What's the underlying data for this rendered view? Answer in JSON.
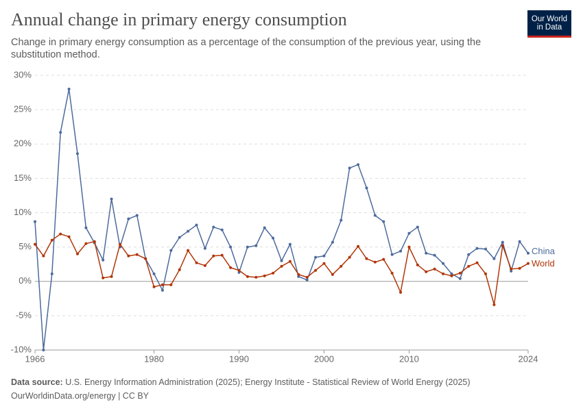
{
  "header": {
    "logo": "Our World in Data"
  },
  "chart_data": {
    "type": "line",
    "title": "Annual change in primary energy consumption",
    "subtitle": "Change in primary energy consumption as a percentage of the consumption of the previous year, using the substitution method.",
    "x": [
      1966,
      1967,
      1968,
      1969,
      1970,
      1971,
      1972,
      1973,
      1974,
      1975,
      1976,
      1977,
      1978,
      1979,
      1980,
      1981,
      1982,
      1983,
      1984,
      1985,
      1986,
      1987,
      1988,
      1989,
      1990,
      1991,
      1992,
      1993,
      1994,
      1995,
      1996,
      1997,
      1998,
      1999,
      2000,
      2001,
      2002,
      2003,
      2004,
      2005,
      2006,
      2007,
      2008,
      2009,
      2010,
      2011,
      2012,
      2013,
      2014,
      2015,
      2016,
      2017,
      2018,
      2019,
      2020,
      2021,
      2022,
      2023,
      2024
    ],
    "series": [
      {
        "name": "China",
        "color": "#4c6a9c",
        "values": [
          8.7,
          -10,
          1.1,
          21.7,
          28.0,
          18.6,
          7.8,
          5.6,
          3.1,
          12.0,
          5.0,
          9.1,
          9.6,
          3.3,
          1.1,
          -1.3,
          4.5,
          6.4,
          7.3,
          8.2,
          4.8,
          7.9,
          7.5,
          5.0,
          1.3,
          5.0,
          5.2,
          7.8,
          6.3,
          3.0,
          5.4,
          0.7,
          0.2,
          3.5,
          3.7,
          5.7,
          8.9,
          16.5,
          17.0,
          13.6,
          9.6,
          8.7,
          3.9,
          4.4,
          7.0,
          7.9,
          4.1,
          3.8,
          2.6,
          1.1,
          0.4,
          3.9,
          4.8,
          4.7,
          3.3,
          5.7,
          1.5,
          5.8,
          4.1
        ]
      },
      {
        "name": "World",
        "color": "#b13507",
        "values": [
          5.4,
          3.7,
          6.0,
          6.9,
          6.5,
          4.0,
          5.5,
          5.8,
          0.5,
          0.7,
          5.4,
          3.7,
          3.9,
          3.3,
          -0.8,
          -0.5,
          -0.5,
          1.7,
          4.5,
          2.7,
          2.3,
          3.7,
          3.8,
          2.0,
          1.6,
          0.7,
          0.6,
          0.8,
          1.2,
          2.2,
          2.9,
          1.0,
          0.6,
          1.6,
          2.6,
          1.0,
          2.2,
          3.5,
          5.1,
          3.3,
          2.8,
          3.2,
          1.2,
          -1.6,
          5.0,
          2.4,
          1.4,
          1.8,
          1.1,
          0.8,
          1.2,
          2.2,
          2.7,
          1.1,
          -3.4,
          5.2,
          1.8,
          1.9,
          2.6
        ]
      }
    ],
    "xlim": [
      1966,
      2024
    ],
    "xticks": [
      1966,
      1980,
      1990,
      2000,
      2010,
      2024
    ],
    "ylim": [
      -10,
      30
    ],
    "yticks": [
      {
        "value": -10,
        "label": "-10%"
      },
      {
        "value": -5,
        "label": "-5%"
      },
      {
        "value": 0,
        "label": "0%"
      },
      {
        "value": 5,
        "label": "5%"
      },
      {
        "value": 10,
        "label": "10%"
      },
      {
        "value": 15,
        "label": "15%"
      },
      {
        "value": 20,
        "label": "20%"
      },
      {
        "value": 25,
        "label": "25%"
      },
      {
        "value": 30,
        "label": "30%"
      }
    ],
    "grid": true
  },
  "footer": {
    "source_label": "Data source:",
    "source": "U.S. Energy Information Administration (2025); Energy Institute - Statistical Review of World Energy (2025)",
    "url": "OurWorldinData.org/energy | CC BY"
  }
}
